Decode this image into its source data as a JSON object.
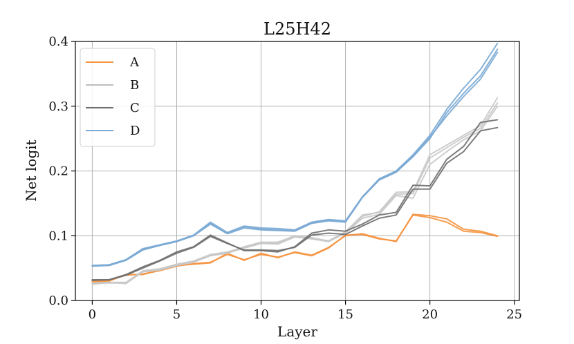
{
  "chart_data": {
    "type": "line",
    "title": "L25H42",
    "xlabel": "Layer",
    "ylabel": "Net logit",
    "xlim": [
      -1,
      25.3
    ],
    "ylim": [
      0,
      0.4
    ],
    "xticks": [
      0,
      5,
      10,
      15,
      20,
      25
    ],
    "yticks": [
      0.0,
      0.1,
      0.2,
      0.3,
      0.4
    ],
    "xtick_labels": [
      "0",
      "5",
      "10",
      "15",
      "20",
      "25"
    ],
    "ytick_labels": [
      "0.0",
      "0.1",
      "0.2",
      "0.3",
      "0.4"
    ],
    "grid": true,
    "legend_position": "top-left",
    "legend": [
      {
        "label": "A",
        "color": "#f5923e"
      },
      {
        "label": "B",
        "color": "#bdbdbd"
      },
      {
        "label": "C",
        "color": "#6e6e6e"
      },
      {
        "label": "D",
        "color": "#79a9d4"
      }
    ],
    "x": [
      0,
      1,
      2,
      3,
      4,
      5,
      6,
      7,
      8,
      9,
      10,
      11,
      12,
      13,
      14,
      15,
      16,
      17,
      18,
      19,
      20,
      21,
      22,
      23,
      24
    ],
    "series": [
      {
        "name": "A",
        "color": "#f5923e",
        "values": [
          0.028,
          0.03,
          0.04,
          0.04,
          0.047,
          0.054,
          0.056,
          0.058,
          0.073,
          0.062,
          0.073,
          0.066,
          0.075,
          0.07,
          0.082,
          0.1,
          0.103,
          0.096,
          0.091,
          0.133,
          0.131,
          0.126,
          0.11,
          0.107,
          0.1
        ]
      },
      {
        "name": "A",
        "color": "#f5923e",
        "values": [
          0.03,
          0.031,
          0.039,
          0.041,
          0.046,
          0.053,
          0.057,
          0.059,
          0.071,
          0.063,
          0.071,
          0.067,
          0.074,
          0.069,
          0.081,
          0.101,
          0.102,
          0.095,
          0.092,
          0.132,
          0.128,
          0.121,
          0.107,
          0.105,
          0.099
        ]
      },
      {
        "name": "B",
        "color": "#c8c8c8",
        "values": [
          0.025,
          0.028,
          0.026,
          0.045,
          0.048,
          0.055,
          0.06,
          0.07,
          0.074,
          0.083,
          0.09,
          0.09,
          0.1,
          0.097,
          0.092,
          0.105,
          0.13,
          0.137,
          0.167,
          0.168,
          0.225,
          0.24,
          0.255,
          0.27,
          0.313
        ]
      },
      {
        "name": "B",
        "color": "#c8c8c8",
        "values": [
          0.026,
          0.027,
          0.027,
          0.044,
          0.047,
          0.054,
          0.059,
          0.069,
          0.073,
          0.081,
          0.088,
          0.087,
          0.098,
          0.095,
          0.091,
          0.104,
          0.127,
          0.133,
          0.162,
          0.158,
          0.21,
          0.23,
          0.248,
          0.262,
          0.3
        ]
      },
      {
        "name": "B",
        "color": "#c8c8c8",
        "values": [
          0.027,
          0.028,
          0.028,
          0.046,
          0.049,
          0.056,
          0.061,
          0.071,
          0.075,
          0.082,
          0.089,
          0.089,
          0.099,
          0.096,
          0.092,
          0.106,
          0.132,
          0.136,
          0.164,
          0.165,
          0.22,
          0.236,
          0.252,
          0.266,
          0.305
        ]
      },
      {
        "name": "C",
        "color": "#6e6e6e",
        "values": [
          0.032,
          0.032,
          0.04,
          0.052,
          0.062,
          0.075,
          0.083,
          0.101,
          0.089,
          0.077,
          0.077,
          0.075,
          0.083,
          0.104,
          0.109,
          0.107,
          0.118,
          0.132,
          0.136,
          0.178,
          0.177,
          0.218,
          0.238,
          0.275,
          0.279
        ]
      },
      {
        "name": "C",
        "color": "#6e6e6e",
        "values": [
          0.031,
          0.032,
          0.039,
          0.05,
          0.061,
          0.073,
          0.082,
          0.099,
          0.088,
          0.078,
          0.078,
          0.077,
          0.082,
          0.101,
          0.104,
          0.102,
          0.115,
          0.127,
          0.132,
          0.172,
          0.172,
          0.212,
          0.23,
          0.262,
          0.267
        ]
      },
      {
        "name": "D",
        "color": "#79a9d4",
        "values": [
          0.054,
          0.055,
          0.063,
          0.08,
          0.086,
          0.092,
          0.101,
          0.121,
          0.105,
          0.115,
          0.112,
          0.111,
          0.109,
          0.121,
          0.125,
          0.123,
          0.16,
          0.188,
          0.2,
          0.225,
          0.255,
          0.295,
          0.328,
          0.357,
          0.397
        ]
      },
      {
        "name": "D",
        "color": "#79a9d4",
        "values": [
          0.053,
          0.054,
          0.062,
          0.078,
          0.085,
          0.091,
          0.1,
          0.118,
          0.103,
          0.112,
          0.109,
          0.108,
          0.107,
          0.119,
          0.123,
          0.121,
          0.159,
          0.186,
          0.198,
          0.222,
          0.25,
          0.29,
          0.32,
          0.347,
          0.388
        ]
      },
      {
        "name": "D",
        "color": "#79a9d4",
        "values": [
          0.054,
          0.055,
          0.063,
          0.079,
          0.085,
          0.091,
          0.1,
          0.119,
          0.104,
          0.114,
          0.11,
          0.109,
          0.108,
          0.12,
          0.124,
          0.122,
          0.16,
          0.187,
          0.199,
          0.223,
          0.252,
          0.285,
          0.315,
          0.342,
          0.383
        ]
      }
    ]
  }
}
